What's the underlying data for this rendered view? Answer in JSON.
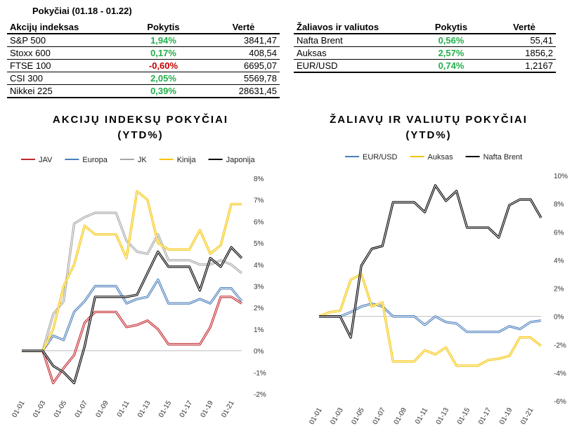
{
  "title": "Pokyčiai (01.18 - 01.22)",
  "table_left": {
    "headers": [
      "Akcijų indeksas",
      "Pokytis",
      "Vertė"
    ],
    "rows": [
      {
        "name": "S&P 500",
        "change": "1,94%",
        "value": "3841,47",
        "status": "pos"
      },
      {
        "name": "Stoxx 600",
        "change": "0,17%",
        "value": "408,54",
        "status": "pos"
      },
      {
        "name": "FTSE 100",
        "change": "-0,60%",
        "value": "6695,07",
        "status": "neg"
      },
      {
        "name": "CSI 300",
        "change": "2,05%",
        "value": "5569,78",
        "status": "pos"
      },
      {
        "name": "Nikkei 225",
        "change": "0,39%",
        "value": "28631,45",
        "status": "pos"
      }
    ]
  },
  "table_right": {
    "headers": [
      "Žaliavos ir valiutos",
      "Pokytis",
      "Vertė"
    ],
    "rows": [
      {
        "name": "Nafta Brent",
        "change": "0,56%",
        "value": "55,41",
        "status": "pos"
      },
      {
        "name": "Auksas",
        "change": "2,57%",
        "value": "1856,2",
        "status": "pos"
      },
      {
        "name": "EUR/USD",
        "change": "0,74%",
        "value": "1,2167",
        "status": "pos"
      }
    ]
  },
  "colors": {
    "positive": "#22b04a",
    "negative": "#c00000"
  },
  "chart_data": [
    {
      "type": "line",
      "title": "AKCIJŲ INDEKSŲ POKYČIAI",
      "subtitle": "(YTD%)",
      "legend_position": "top",
      "grid": false,
      "y_axis_side": "right",
      "ylim": [
        -2,
        8
      ],
      "yticks": [
        "-2%",
        "-1%",
        "0%",
        "1%",
        "2%",
        "3%",
        "4%",
        "5%",
        "6%",
        "7%",
        "8%"
      ],
      "x": [
        "01-01",
        "01-02",
        "01-03",
        "01-04",
        "01-05",
        "01-06",
        "01-07",
        "01-08",
        "01-09",
        "01-10",
        "01-11",
        "01-12",
        "01-13",
        "01-14",
        "01-15",
        "01-16",
        "01-17",
        "01-18",
        "01-19",
        "01-20",
        "01-21",
        "01-22"
      ],
      "xtick_labels": [
        "01-01",
        "01-03",
        "01-05",
        "01-07",
        "01-09",
        "01-11",
        "01-13",
        "01-15",
        "01-17",
        "01-19",
        "01-21"
      ],
      "series": [
        {
          "name": "JAV",
          "color": "#c0272d",
          "values": [
            0,
            0,
            0,
            -1.5,
            -0.8,
            -0.2,
            1.3,
            1.8,
            1.8,
            1.8,
            1.1,
            1.2,
            1.4,
            1.0,
            0.3,
            0.3,
            0.3,
            0.3,
            1.1,
            2.5,
            2.5,
            2.2
          ]
        },
        {
          "name": "Europa",
          "color": "#4a7ebb",
          "values": [
            0,
            0,
            0,
            0.7,
            0.5,
            1.8,
            2.3,
            3.0,
            3.0,
            3.0,
            2.2,
            2.4,
            2.5,
            3.3,
            2.2,
            2.2,
            2.2,
            2.4,
            2.2,
            2.9,
            2.9,
            2.3
          ]
        },
        {
          "name": "JK",
          "color": "#a6a6a6",
          "values": [
            0,
            0,
            0,
            1.7,
            2.3,
            5.9,
            6.2,
            6.4,
            6.4,
            6.4,
            5.1,
            4.6,
            4.5,
            5.4,
            4.2,
            4.2,
            4.2,
            4.0,
            4.0,
            4.2,
            4.0,
            3.6
          ]
        },
        {
          "name": "Kinija",
          "color": "#f5c400",
          "values": [
            0,
            0,
            0,
            1.0,
            3.0,
            4.0,
            5.8,
            5.4,
            5.4,
            5.4,
            4.3,
            7.4,
            7.0,
            5.0,
            4.7,
            4.7,
            4.7,
            5.6,
            4.5,
            4.9,
            6.8,
            6.8
          ]
        },
        {
          "name": "Japonija",
          "color": "#000000",
          "values": [
            0,
            0,
            0,
            -0.7,
            -1.0,
            -1.5,
            0.2,
            2.5,
            2.5,
            2.5,
            2.5,
            2.6,
            3.6,
            4.6,
            3.9,
            3.9,
            3.9,
            2.8,
            4.3,
            3.9,
            4.8,
            4.3
          ]
        }
      ]
    },
    {
      "type": "line",
      "title": "ŽALIAVŲ IR VALIUTŲ POKYČIAI",
      "subtitle": "(YTD%)",
      "legend_position": "top",
      "grid": false,
      "y_axis_side": "right",
      "ylim": [
        -6,
        10
      ],
      "yticks": [
        "-6%",
        "-4%",
        "-2%",
        "0%",
        "2%",
        "4%",
        "6%",
        "8%",
        "10%"
      ],
      "x": [
        "01-01",
        "01-02",
        "01-03",
        "01-04",
        "01-05",
        "01-06",
        "01-07",
        "01-08",
        "01-09",
        "01-10",
        "01-11",
        "01-12",
        "01-13",
        "01-14",
        "01-15",
        "01-16",
        "01-17",
        "01-18",
        "01-19",
        "01-20",
        "01-21",
        "01-22"
      ],
      "xtick_labels": [
        "01-01",
        "01-03",
        "01-05",
        "01-07",
        "01-09",
        "01-11",
        "01-13",
        "01-15",
        "01-17",
        "01-19",
        "01-21"
      ],
      "series": [
        {
          "name": "EUR/USD",
          "color": "#4a7ebb",
          "values": [
            0,
            0,
            0,
            0.3,
            0.7,
            0.9,
            0.7,
            0,
            0,
            0,
            -0.6,
            0,
            -0.4,
            -0.5,
            -1.1,
            -1.1,
            -1.1,
            -1.1,
            -0.7,
            -0.9,
            -0.4,
            -0.3
          ]
        },
        {
          "name": "Auksas",
          "color": "#f5c400",
          "values": [
            0,
            0.3,
            0.4,
            2.6,
            3.0,
            0.7,
            1.0,
            -3.2,
            -3.2,
            -3.2,
            -2.4,
            -2.7,
            -2.2,
            -3.5,
            -3.5,
            -3.5,
            -3.1,
            -3.0,
            -2.8,
            -1.5,
            -1.5,
            -2.1
          ]
        },
        {
          "name": "Nafta Brent",
          "color": "#000000",
          "values": [
            0,
            0,
            0,
            -1.5,
            3.6,
            4.8,
            5.0,
            8.1,
            8.1,
            8.1,
            7.4,
            9.3,
            8.2,
            8.9,
            6.3,
            6.3,
            6.3,
            5.6,
            7.9,
            8.3,
            8.3,
            7.0
          ]
        }
      ]
    }
  ]
}
